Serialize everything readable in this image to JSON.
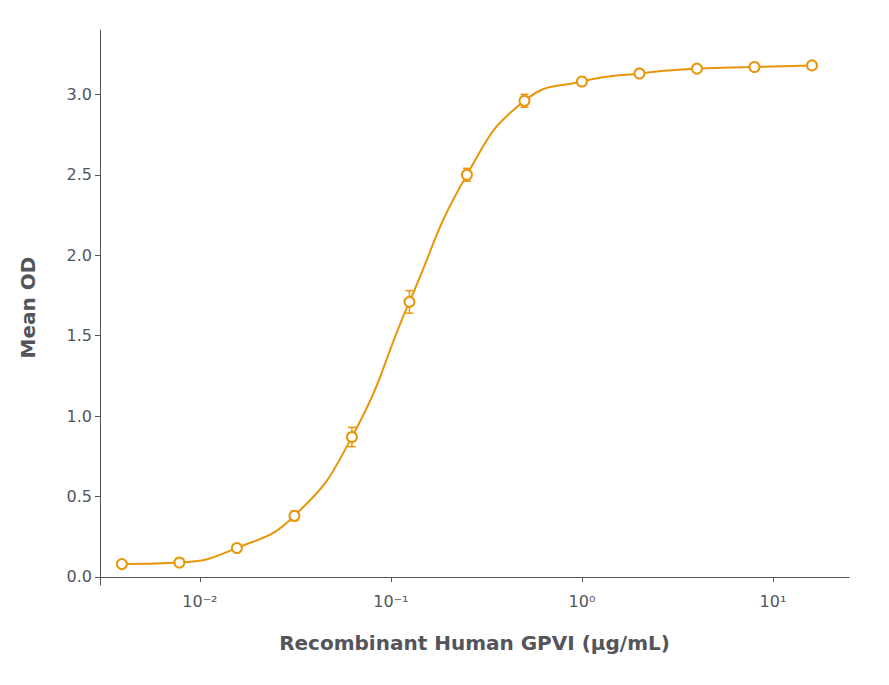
{
  "chart_data": {
    "type": "line",
    "x": [
      0.00390625,
      0.0078125,
      0.015625,
      0.03125,
      0.0625,
      0.125,
      0.25,
      0.5,
      1.0,
      2.0,
      4.0,
      8.0,
      16.0
    ],
    "values": [
      0.08,
      0.09,
      0.18,
      0.38,
      0.87,
      1.71,
      2.5,
      2.96,
      3.08,
      3.13,
      3.16,
      3.17,
      3.18
    ],
    "y_err": [
      0.01,
      0.01,
      0.01,
      0.03,
      0.06,
      0.07,
      0.04,
      0.04,
      0.02,
      0.01,
      0.02,
      0.01,
      0.02
    ],
    "color": "#E8960A",
    "marker": "circle",
    "xlabel": "Recombinant Human GPVI (μg/mL)",
    "ylabel": "Mean OD",
    "log": "x",
    "xlim": [
      0.003,
      25.0
    ],
    "ylim": [
      -0.05,
      3.4
    ],
    "xticks": [
      {
        "value": 0.01,
        "label": "10⁻²"
      },
      {
        "value": 0.1,
        "label": "10⁻¹"
      },
      {
        "value": 1,
        "label": "10⁰"
      },
      {
        "value": 10,
        "label": "10¹"
      }
    ],
    "yticks": [
      {
        "value": 0,
        "label": "0.0"
      },
      0.5,
      {
        "value": 1,
        "label": "1.0"
      },
      1.5,
      {
        "value": 2,
        "label": "2.0"
      },
      2.5,
      {
        "value": 3,
        "label": "3.0"
      }
    ],
    "grid": false
  }
}
